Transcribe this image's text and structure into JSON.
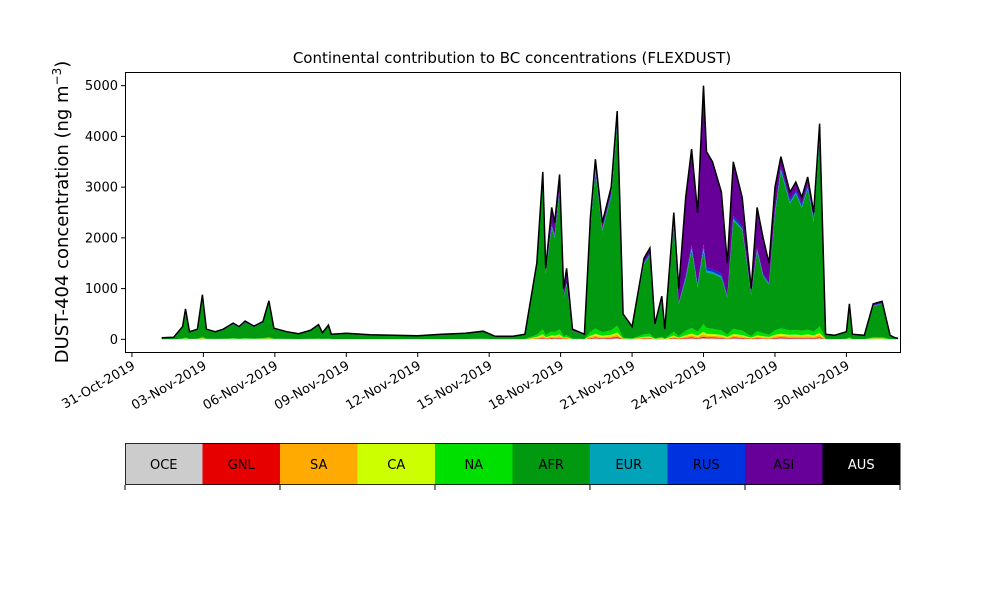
{
  "chart_data": {
    "type": "area",
    "title": "Continental contribution to BC concentrations (FLEXDUST)",
    "ylabel": "DUST-404 concentration (ng m",
    "ylabel_sup": "−3",
    "ylabel_close": ")",
    "xlabel": "",
    "ylim": [
      -250,
      5250
    ],
    "yticks": [
      0,
      1000,
      2000,
      3000,
      4000,
      5000
    ],
    "xlim": [
      "2019-10-30T18:00",
      "2019-12-02T06:00"
    ],
    "xticks": [
      "31-Oct-2019",
      "03-Nov-2019",
      "06-Nov-2019",
      "09-Nov-2019",
      "12-Nov-2019",
      "15-Nov-2019",
      "18-Nov-2019",
      "21-Nov-2019",
      "24-Nov-2019",
      "27-Nov-2019",
      "30-Nov-2019"
    ],
    "xtick_dates": [
      "2019-10-31",
      "2019-11-03",
      "2019-11-06",
      "2019-11-09",
      "2019-11-12",
      "2019-11-15",
      "2019-11-18",
      "2019-11-21",
      "2019-11-24",
      "2019-11-27",
      "2019-11-30"
    ],
    "total": [
      [
        "2019-11-01T06:00",
        30
      ],
      [
        "2019-11-01T18:00",
        40
      ],
      [
        "2019-11-02T03:00",
        250
      ],
      [
        "2019-11-02T06:00",
        600
      ],
      [
        "2019-11-02T10:00",
        150
      ],
      [
        "2019-11-02T18:00",
        200
      ],
      [
        "2019-11-02T23:00",
        880
      ],
      [
        "2019-11-03T03:00",
        200
      ],
      [
        "2019-11-03T12:00",
        150
      ],
      [
        "2019-11-03T20:00",
        200
      ],
      [
        "2019-11-04T06:00",
        320
      ],
      [
        "2019-11-04T12:00",
        250
      ],
      [
        "2019-11-04T18:00",
        360
      ],
      [
        "2019-11-05T03:00",
        260
      ],
      [
        "2019-11-05T12:00",
        350
      ],
      [
        "2019-11-05T18:00",
        760
      ],
      [
        "2019-11-05T23:00",
        220
      ],
      [
        "2019-11-06T12:00",
        150
      ],
      [
        "2019-11-07T00:00",
        110
      ],
      [
        "2019-11-07T12:00",
        180
      ],
      [
        "2019-11-07T20:00",
        290
      ],
      [
        "2019-11-08T00:00",
        130
      ],
      [
        "2019-11-08T06:00",
        280
      ],
      [
        "2019-11-08T09:00",
        100
      ],
      [
        "2019-11-09T00:00",
        120
      ],
      [
        "2019-11-10T00:00",
        90
      ],
      [
        "2019-11-11T00:00",
        80
      ],
      [
        "2019-11-12T00:00",
        70
      ],
      [
        "2019-11-13T00:00",
        100
      ],
      [
        "2019-11-14T00:00",
        120
      ],
      [
        "2019-11-14T18:00",
        160
      ],
      [
        "2019-11-15T06:00",
        60
      ],
      [
        "2019-11-16T00:00",
        60
      ],
      [
        "2019-11-16T12:00",
        100
      ],
      [
        "2019-11-17T00:00",
        1500
      ],
      [
        "2019-11-17T06:00",
        3300
      ],
      [
        "2019-11-17T09:00",
        1400
      ],
      [
        "2019-11-17T15:00",
        2600
      ],
      [
        "2019-11-17T18:00",
        2300
      ],
      [
        "2019-11-17T23:00",
        3250
      ],
      [
        "2019-11-18T03:00",
        1000
      ],
      [
        "2019-11-18T06:00",
        1400
      ],
      [
        "2019-11-18T12:00",
        200
      ],
      [
        "2019-11-19T00:00",
        100
      ],
      [
        "2019-11-19T06:00",
        2400
      ],
      [
        "2019-11-19T11:00",
        3550
      ],
      [
        "2019-11-19T18:00",
        2300
      ],
      [
        "2019-11-20T03:00",
        3000
      ],
      [
        "2019-11-20T09:00",
        4500
      ],
      [
        "2019-11-20T15:00",
        500
      ],
      [
        "2019-11-21T00:00",
        250
      ],
      [
        "2019-11-21T12:00",
        1600
      ],
      [
        "2019-11-21T18:00",
        1800
      ],
      [
        "2019-11-21T23:00",
        300
      ],
      [
        "2019-11-22T06:00",
        850
      ],
      [
        "2019-11-22T09:00",
        200
      ],
      [
        "2019-11-22T18:00",
        2500
      ],
      [
        "2019-11-22T23:00",
        1000
      ],
      [
        "2019-11-23T06:00",
        2800
      ],
      [
        "2019-11-23T12:00",
        3750
      ],
      [
        "2019-11-23T18:00",
        2500
      ],
      [
        "2019-11-24T00:00",
        5000
      ],
      [
        "2019-11-24T03:00",
        3700
      ],
      [
        "2019-11-24T09:00",
        3500
      ],
      [
        "2019-11-24T18:00",
        2900
      ],
      [
        "2019-11-25T00:00",
        1500
      ],
      [
        "2019-11-25T06:00",
        3500
      ],
      [
        "2019-11-25T15:00",
        2800
      ],
      [
        "2019-11-26T00:00",
        1000
      ],
      [
        "2019-11-26T06:00",
        2600
      ],
      [
        "2019-11-26T12:00",
        2000
      ],
      [
        "2019-11-26T18:00",
        1500
      ],
      [
        "2019-11-27T00:00",
        3000
      ],
      [
        "2019-11-27T06:00",
        3600
      ],
      [
        "2019-11-27T15:00",
        2900
      ],
      [
        "2019-11-27T21:00",
        3100
      ],
      [
        "2019-11-28T03:00",
        2800
      ],
      [
        "2019-11-28T09:00",
        3200
      ],
      [
        "2019-11-28T15:00",
        2500
      ],
      [
        "2019-11-28T21:00",
        4250
      ],
      [
        "2019-11-29T03:00",
        100
      ],
      [
        "2019-11-29T12:00",
        80
      ],
      [
        "2019-11-30T00:00",
        150
      ],
      [
        "2019-11-30T03:00",
        700
      ],
      [
        "2019-11-30T06:00",
        100
      ],
      [
        "2019-11-30T18:00",
        80
      ],
      [
        "2019-12-01T03:00",
        700
      ],
      [
        "2019-12-01T12:00",
        750
      ],
      [
        "2019-12-01T20:00",
        80
      ],
      [
        "2019-12-02T00:00",
        40
      ],
      [
        "2019-12-02T04:00",
        20
      ]
    ],
    "asi_fraction": [
      [
        "2019-11-01T00:00",
        0.04
      ],
      [
        "2019-11-16T00:00",
        0.04
      ],
      [
        "2019-11-17T06:00",
        0.02
      ],
      [
        "2019-11-17T15:00",
        0.12
      ],
      [
        "2019-11-17T23:00",
        0.07
      ],
      [
        "2019-11-18T06:00",
        0.2
      ],
      [
        "2019-11-19T06:00",
        0.05
      ],
      [
        "2019-11-20T09:00",
        0.03
      ],
      [
        "2019-11-21T18:00",
        0.05
      ],
      [
        "2019-11-22T18:00",
        0.08
      ],
      [
        "2019-11-23T06:00",
        0.55
      ],
      [
        "2019-11-23T12:00",
        0.5
      ],
      [
        "2019-11-24T00:00",
        0.62
      ],
      [
        "2019-11-24T09:00",
        0.6
      ],
      [
        "2019-11-24T18:00",
        0.55
      ],
      [
        "2019-11-25T06:00",
        0.3
      ],
      [
        "2019-11-26T00:00",
        0.1
      ],
      [
        "2019-11-26T06:00",
        0.3
      ],
      [
        "2019-11-26T12:00",
        0.35
      ],
      [
        "2019-11-27T06:00",
        0.05
      ],
      [
        "2019-11-28T21:00",
        0.04
      ],
      [
        "2019-12-02T04:00",
        0.04
      ]
    ],
    "series": [
      {
        "name": "OCE",
        "color": "#cccccc"
      },
      {
        "name": "GNL",
        "color": "#e60000"
      },
      {
        "name": "SA",
        "color": "#ffaa00"
      },
      {
        "name": "CA",
        "color": "#ccff00"
      },
      {
        "name": "NA",
        "color": "#00e000"
      },
      {
        "name": "AFR",
        "color": "#00990f"
      },
      {
        "name": "EUR",
        "color": "#00a3b8"
      },
      {
        "name": "RUS",
        "color": "#0033e0"
      },
      {
        "name": "ASI",
        "color": "#660099"
      },
      {
        "name": "AUS",
        "color": "#000000"
      }
    ],
    "grid": false,
    "legend": "bottom"
  }
}
